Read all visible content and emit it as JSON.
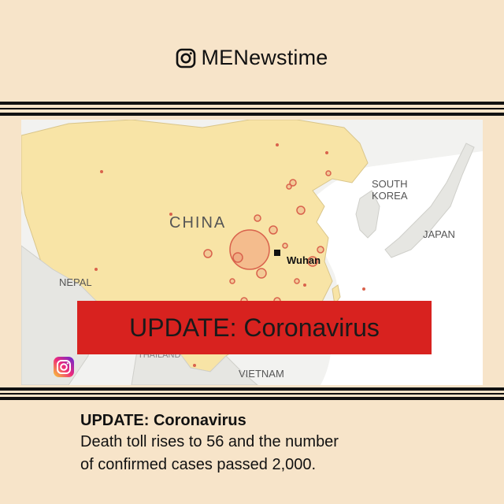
{
  "header": {
    "handle": "MENewstime"
  },
  "map": {
    "labels": {
      "china": "CHINA",
      "wuhan": "Wuhan",
      "south_korea_1": "SOUTH",
      "south_korea_2": "KOREA",
      "japan": "JAPAN",
      "nepal": "NEPAL",
      "thailand": "THAILAND",
      "vietnam": "VIETNAM"
    }
  },
  "banner": {
    "text": "UPDATE: Coronavirus"
  },
  "caption": {
    "title": "UPDATE: Coronavirus",
    "line1": "Death toll rises to 56 and the number",
    "line2": "of confirmed cases passed 2,000."
  },
  "colors": {
    "background": "#f7e4c9",
    "banner": "#d8221f",
    "china": "#f8e4a6",
    "circle": "#e07a66"
  }
}
